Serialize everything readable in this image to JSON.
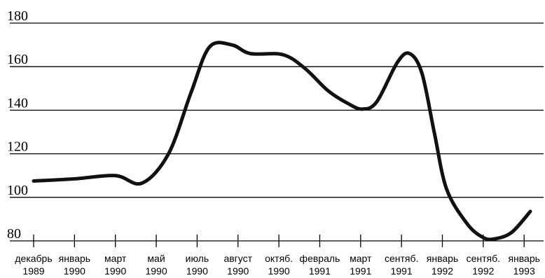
{
  "chart_data": {
    "type": "line",
    "title": "",
    "xlabel": "",
    "ylabel": "",
    "ylim": [
      80,
      180
    ],
    "yticks": [
      "180",
      "160",
      "140",
      "120",
      "100",
      "80"
    ],
    "ytick_values": [
      180,
      160,
      140,
      120,
      100,
      80
    ],
    "grid": true,
    "x_tick_labels": [
      [
        "декабрь",
        "1989"
      ],
      [
        "январь",
        "1990"
      ],
      [
        "март",
        "1990"
      ],
      [
        "май",
        "1990"
      ],
      [
        "июль",
        "1990"
      ],
      [
        "август",
        "1990"
      ],
      [
        "октяб.",
        "1990"
      ],
      [
        "февраль",
        "1991"
      ],
      [
        "март",
        "1991"
      ],
      [
        "сентяб.",
        "1991"
      ],
      [
        "январь",
        "1992"
      ],
      [
        "сентяб.",
        "1992"
      ],
      [
        "январь",
        "1993"
      ]
    ],
    "series": [
      {
        "points": [
          {
            "x": 0.0,
            "y": 107.5
          },
          {
            "x": 1.0,
            "y": 108.5
          },
          {
            "x": 2.0,
            "y": 110
          },
          {
            "x": 2.65,
            "y": 106.5
          },
          {
            "x": 3.3,
            "y": 120
          },
          {
            "x": 3.85,
            "y": 148
          },
          {
            "x": 4.3,
            "y": 169
          },
          {
            "x": 4.85,
            "y": 170
          },
          {
            "x": 5.3,
            "y": 166
          },
          {
            "x": 6.1,
            "y": 165.5
          },
          {
            "x": 6.65,
            "y": 159
          },
          {
            "x": 7.2,
            "y": 149
          },
          {
            "x": 7.7,
            "y": 143
          },
          {
            "x": 8.05,
            "y": 140.5
          },
          {
            "x": 8.4,
            "y": 144
          },
          {
            "x": 8.9,
            "y": 162
          },
          {
            "x": 9.2,
            "y": 166
          },
          {
            "x": 9.5,
            "y": 157
          },
          {
            "x": 9.8,
            "y": 130
          },
          {
            "x": 10.1,
            "y": 104
          },
          {
            "x": 10.6,
            "y": 88
          },
          {
            "x": 11.0,
            "y": 81.5
          },
          {
            "x": 11.3,
            "y": 81
          },
          {
            "x": 11.7,
            "y": 84
          },
          {
            "x": 12.15,
            "y": 93.5
          }
        ]
      }
    ]
  }
}
